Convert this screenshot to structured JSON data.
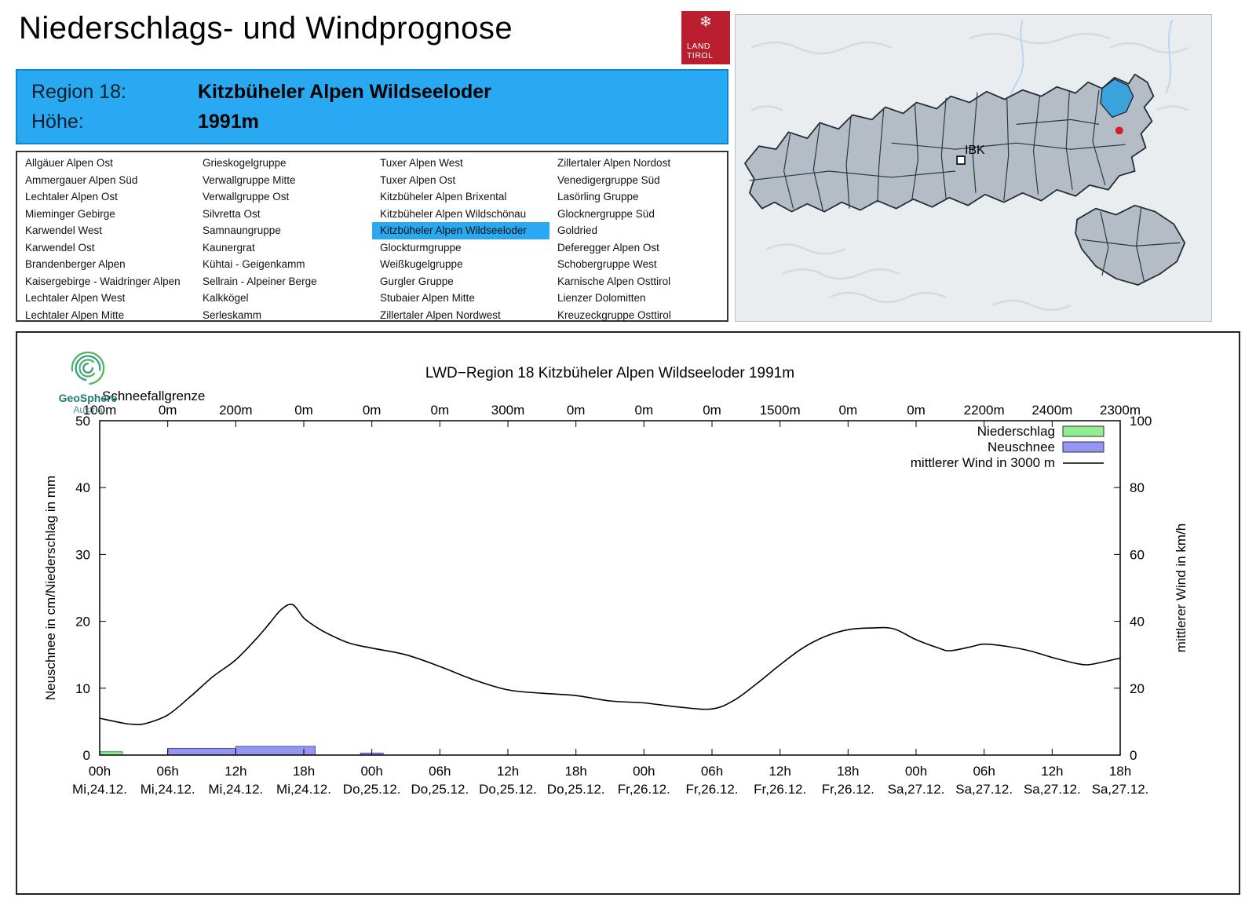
{
  "page": {
    "title": "Niederschlags- und Windprognose"
  },
  "logo": {
    "line1": "LAND",
    "line2": "TIROL"
  },
  "region_header": {
    "region_label": "Region 18:",
    "region_name": "Kitzbüheler Alpen Wildseeloder",
    "altitude_label": "Höhe:",
    "altitude_value": "1991m"
  },
  "region_list": {
    "selected": "Kitzbüheler Alpen Wildseeloder",
    "columns": [
      [
        "Allgäuer Alpen Ost",
        "Ammergauer Alpen Süd",
        "Lechtaler Alpen Ost",
        "Mieminger Gebirge",
        "Karwendel West",
        "Karwendel Ost",
        "Brandenberger Alpen",
        "Kaisergebirge - Waidringer Alpen",
        "Lechtaler Alpen West",
        "Lechtaler Alpen Mitte"
      ],
      [
        "Grieskogelgruppe",
        "Verwallgruppe Mitte",
        "Verwallgruppe Ost",
        "Silvretta Ost",
        "Samnaungruppe",
        "Kaunergrat",
        "Kühtai - Geigenkamm",
        "Sellrain - Alpeiner Berge",
        "Kalkkögel",
        "Serleskamm"
      ],
      [
        "Tuxer Alpen West",
        "Tuxer Alpen Ost",
        "Kitzbüheler Alpen Brixental",
        "Kitzbüheler Alpen Wildschönau",
        "Kitzbüheler Alpen Wildseeloder",
        "Glockturmgruppe",
        "Weißkugelgruppe",
        "Gurgler Gruppe",
        "Stubaier Alpen Mitte",
        "Zillertaler Alpen Nordwest"
      ],
      [
        "Zillertaler Alpen Nordost",
        "Venedigergruppe Süd",
        "Lasörling Gruppe",
        "Glocknergruppe Süd",
        "Goldried",
        "Deferegger Alpen Ost",
        "Schobergruppe West",
        "Karnische Alpen Osttirol",
        "Lienzer Dolomitten",
        "Kreuzeckgruppe Osttirol"
      ]
    ]
  },
  "map": {
    "city_label": "IBK"
  },
  "geosphere": {
    "name": "GeoSphere",
    "country": "Austria"
  },
  "chart_data": {
    "type": "line+bar",
    "title": "LWD−Region 18 Kitzbüheler Alpen Wildseeloder 1991m",
    "ylabel_left": "Neuschnee in cm/Niederschlag in mm",
    "ylabel_right": "mittlerer Wind in km/h",
    "ylim_left": [
      0,
      50
    ],
    "ylim_right": [
      0,
      100
    ],
    "x_range_hours": [
      0,
      90
    ],
    "snowline_label": "Schneefallgrenze",
    "snowline_values": [
      "100m",
      "0m",
      "200m",
      "0m",
      "0m",
      "0m",
      "300m",
      "0m",
      "0m",
      "0m",
      "1500m",
      "0m",
      "0m",
      "2200m",
      "2400m",
      "2300m"
    ],
    "x_ticks_hours": [
      "00h",
      "06h",
      "12h",
      "18h",
      "00h",
      "06h",
      "12h",
      "18h",
      "00h",
      "06h",
      "12h",
      "18h",
      "00h",
      "06h",
      "12h",
      "18h"
    ],
    "x_ticks_days": [
      "Mi,24.12.",
      "Mi,24.12.",
      "Mi,24.12.",
      "Mi,24.12.",
      "Do,25.12.",
      "Do,25.12.",
      "Do,25.12.",
      "Do,25.12.",
      "Fr,26.12.",
      "Fr,26.12.",
      "Fr,26.12.",
      "Fr,26.12.",
      "Sa,27.12.",
      "Sa,27.12.",
      "Sa,27.12.",
      "Sa,27.12."
    ],
    "colors": {
      "niederschlag": "#90ee90",
      "neuschnee": "#9696f2",
      "wind": "#000000"
    },
    "legend": [
      {
        "label": "Niederschlag",
        "type": "box",
        "color": "#90ee90"
      },
      {
        "label": "Neuschnee",
        "type": "box",
        "color": "#9696f2"
      },
      {
        "label": "mittlerer Wind in 3000 m",
        "type": "line",
        "color": "#000000"
      }
    ],
    "niederschlag_bars": [
      {
        "start": 0,
        "end": 2,
        "value": 0.5
      }
    ],
    "neuschnee_bars": [
      {
        "start": 6,
        "end": 12,
        "value": 1.0
      },
      {
        "start": 12,
        "end": 19,
        "value": 1.3
      },
      {
        "start": 23,
        "end": 25,
        "value": 0.3
      }
    ],
    "wind_series": {
      "name": "mittlerer Wind in 3000 m",
      "unit": "km/h",
      "points": [
        [
          0,
          11
        ],
        [
          2,
          9.6
        ],
        [
          3,
          9.2
        ],
        [
          4,
          9.4
        ],
        [
          6,
          12
        ],
        [
          8,
          17.5
        ],
        [
          10,
          23.5
        ],
        [
          12,
          28.5
        ],
        [
          14,
          35.5
        ],
        [
          15,
          39.5
        ],
        [
          16,
          43.5
        ],
        [
          17,
          45
        ],
        [
          18,
          41
        ],
        [
          19,
          38.5
        ],
        [
          20,
          36.5
        ],
        [
          22,
          33.5
        ],
        [
          24,
          32
        ],
        [
          27,
          30
        ],
        [
          30,
          26.5
        ],
        [
          33,
          22.5
        ],
        [
          36,
          19.5
        ],
        [
          39,
          18.5
        ],
        [
          42,
          17.8
        ],
        [
          45,
          16.2
        ],
        [
          48,
          15.6
        ],
        [
          51,
          14.4
        ],
        [
          54,
          13.8
        ],
        [
          56,
          16.5
        ],
        [
          58,
          21.5
        ],
        [
          60,
          27
        ],
        [
          62,
          32
        ],
        [
          64,
          35.5
        ],
        [
          66,
          37.5
        ],
        [
          68,
          38
        ],
        [
          70,
          37.8
        ],
        [
          72,
          34.5
        ],
        [
          74,
          32
        ],
        [
          75,
          31.2
        ],
        [
          77,
          32.5
        ],
        [
          78,
          33.2
        ],
        [
          80,
          32.5
        ],
        [
          82,
          31.2
        ],
        [
          84,
          29.2
        ],
        [
          86,
          27.5
        ],
        [
          87,
          27
        ],
        [
          88,
          27.5
        ],
        [
          90,
          29
        ]
      ]
    }
  }
}
